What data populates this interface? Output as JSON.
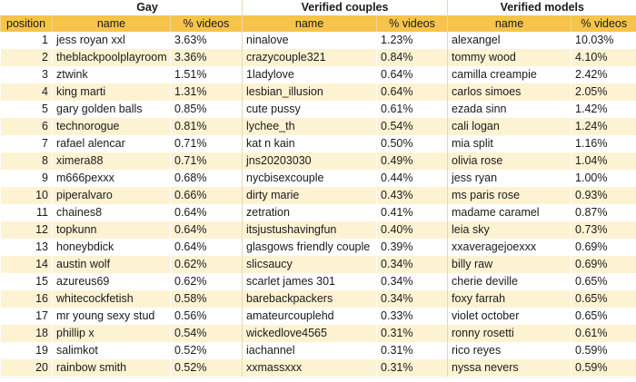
{
  "groups": [
    {
      "title": "Gay"
    },
    {
      "title": "Verified couples"
    },
    {
      "title": "Verified models"
    }
  ],
  "columns": {
    "position": "position",
    "name": "name",
    "pct": "% videos"
  },
  "rows": [
    {
      "position": "1",
      "c1": {
        "name": "jess royan xxl",
        "pct": "3.63%"
      },
      "c2": {
        "name": "ninalove",
        "pct": "1.23%"
      },
      "c3": {
        "name": "alexangel",
        "pct": "10.03%"
      }
    },
    {
      "position": "2",
      "c1": {
        "name": "theblackpoolplayroom",
        "pct": "3.36%"
      },
      "c2": {
        "name": "crazycouple321",
        "pct": "0.84%"
      },
      "c3": {
        "name": "tommy wood",
        "pct": "4.10%"
      }
    },
    {
      "position": "3",
      "c1": {
        "name": "ztwink",
        "pct": "1.51%"
      },
      "c2": {
        "name": "1ladylove",
        "pct": "0.64%"
      },
      "c3": {
        "name": "camilla creampie",
        "pct": "2.42%"
      }
    },
    {
      "position": "4",
      "c1": {
        "name": "king marti",
        "pct": "1.31%"
      },
      "c2": {
        "name": "lesbian_illusion",
        "pct": "0.64%"
      },
      "c3": {
        "name": "carlos simoes",
        "pct": "2.05%"
      }
    },
    {
      "position": "5",
      "c1": {
        "name": "gary golden balls",
        "pct": "0.85%"
      },
      "c2": {
        "name": "cute pussy",
        "pct": "0.61%"
      },
      "c3": {
        "name": "ezada sinn",
        "pct": "1.42%"
      }
    },
    {
      "position": "6",
      "c1": {
        "name": "technorogue",
        "pct": "0.81%"
      },
      "c2": {
        "name": "lychee_th",
        "pct": "0.54%"
      },
      "c3": {
        "name": "cali logan",
        "pct": "1.24%"
      }
    },
    {
      "position": "7",
      "c1": {
        "name": "rafael alencar",
        "pct": "0.71%"
      },
      "c2": {
        "name": "kat n kain",
        "pct": "0.50%"
      },
      "c3": {
        "name": "mia split",
        "pct": "1.16%"
      }
    },
    {
      "position": "8",
      "c1": {
        "name": "ximera88",
        "pct": "0.71%"
      },
      "c2": {
        "name": "jns20203030",
        "pct": "0.49%"
      },
      "c3": {
        "name": "olivia rose",
        "pct": "1.04%"
      }
    },
    {
      "position": "9",
      "c1": {
        "name": "m666pexxx",
        "pct": "0.68%"
      },
      "c2": {
        "name": "nycbisexcouple",
        "pct": "0.44%"
      },
      "c3": {
        "name": "jess ryan",
        "pct": "1.00%"
      }
    },
    {
      "position": "10",
      "c1": {
        "name": "piperalvaro",
        "pct": "0.66%"
      },
      "c2": {
        "name": "dirty marie",
        "pct": "0.43%"
      },
      "c3": {
        "name": "ms paris rose",
        "pct": "0.93%"
      }
    },
    {
      "position": "11",
      "c1": {
        "name": "chaines8",
        "pct": "0.64%"
      },
      "c2": {
        "name": "zetration",
        "pct": "0.41%"
      },
      "c3": {
        "name": "madame caramel",
        "pct": "0.87%"
      }
    },
    {
      "position": "12",
      "c1": {
        "name": "topkunn",
        "pct": "0.64%"
      },
      "c2": {
        "name": "itsjustushavingfun",
        "pct": "0.40%"
      },
      "c3": {
        "name": "leia sky",
        "pct": "0.73%"
      }
    },
    {
      "position": "13",
      "c1": {
        "name": "honeybdick",
        "pct": "0.64%"
      },
      "c2": {
        "name": "glasgows friendly couple",
        "pct": "0.39%"
      },
      "c3": {
        "name": "xxaveragejoexxx",
        "pct": "0.69%"
      }
    },
    {
      "position": "14",
      "c1": {
        "name": "austin wolf",
        "pct": "0.62%"
      },
      "c2": {
        "name": "slicsaucy",
        "pct": "0.34%"
      },
      "c3": {
        "name": "billy raw",
        "pct": "0.69%"
      }
    },
    {
      "position": "15",
      "c1": {
        "name": "azureus69",
        "pct": "0.62%"
      },
      "c2": {
        "name": "scarlet james 301",
        "pct": "0.34%"
      },
      "c3": {
        "name": "cherie deville",
        "pct": "0.65%"
      }
    },
    {
      "position": "16",
      "c1": {
        "name": "whitecockfetish",
        "pct": "0.58%"
      },
      "c2": {
        "name": "barebackpackers",
        "pct": "0.34%"
      },
      "c3": {
        "name": "foxy farrah",
        "pct": "0.65%"
      }
    },
    {
      "position": "17",
      "c1": {
        "name": "mr young sexy stud",
        "pct": "0.56%"
      },
      "c2": {
        "name": "amateurcouplehd",
        "pct": "0.33%"
      },
      "c3": {
        "name": "violet october",
        "pct": "0.65%"
      }
    },
    {
      "position": "18",
      "c1": {
        "name": "phillip x",
        "pct": "0.54%"
      },
      "c2": {
        "name": "wickedlove4565",
        "pct": "0.31%"
      },
      "c3": {
        "name": "ronny rosetti",
        "pct": "0.61%"
      }
    },
    {
      "position": "19",
      "c1": {
        "name": "salimkot",
        "pct": "0.52%"
      },
      "c2": {
        "name": "iachannel",
        "pct": "0.31%"
      },
      "c3": {
        "name": "rico reyes",
        "pct": "0.59%"
      }
    },
    {
      "position": "20",
      "c1": {
        "name": "rainbow smith",
        "pct": "0.52%"
      },
      "c2": {
        "name": "xxmassxxx",
        "pct": "0.31%"
      },
      "c3": {
        "name": "nyssa nevers",
        "pct": "0.59%"
      }
    }
  ],
  "colors": {
    "header_fill": "#f7c44a",
    "stripe_fill": "#fdf3d3"
  }
}
